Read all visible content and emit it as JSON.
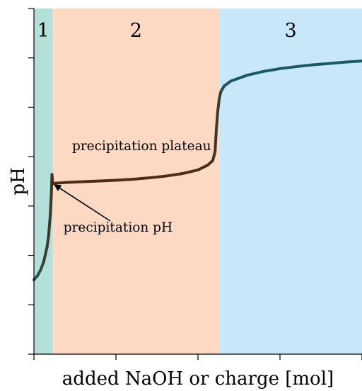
{
  "chart_data": {
    "type": "line",
    "title": "",
    "xlabel": "added NaOH or charge [mol]",
    "ylabel": "pH",
    "xlim": [
      0,
      1
    ],
    "ylim": [
      0,
      1
    ],
    "grid": false,
    "regions": [
      {
        "label": "1",
        "x_start": 0.0,
        "x_end": 0.057,
        "color": "#b3e0d9"
      },
      {
        "label": "2",
        "x_start": 0.057,
        "x_end": 0.565,
        "color": "#fdd9c3"
      },
      {
        "label": "3",
        "x_start": 0.565,
        "x_end": 1.0,
        "color": "#c8e8fa"
      }
    ],
    "series": [
      {
        "x": [
          0,
          0.01,
          0.02,
          0.03,
          0.04,
          0.045,
          0.05,
          0.053,
          0.055,
          0.057,
          0.06,
          0.1,
          0.15,
          0.2,
          0.25,
          0.3,
          0.35,
          0.4,
          0.45,
          0.5,
          0.53,
          0.545,
          0.552,
          0.556,
          0.56,
          0.565,
          0.57,
          0.58,
          0.6,
          0.65,
          0.7,
          0.75,
          0.8,
          0.85,
          0.9,
          0.95,
          1.0
        ],
        "y": [
          0.215,
          0.226,
          0.243,
          0.268,
          0.31,
          0.345,
          0.405,
          0.46,
          0.52,
          0.495,
          0.494,
          0.497,
          0.499,
          0.501,
          0.503,
          0.506,
          0.51,
          0.515,
          0.522,
          0.533,
          0.547,
          0.56,
          0.585,
          0.65,
          0.7,
          0.74,
          0.76,
          0.776,
          0.79,
          0.807,
          0.818,
          0.826,
          0.832,
          0.837,
          0.841,
          0.845,
          0.848
        ],
        "color_start": "#1c5a62",
        "color_mid": "#4a2e18"
      }
    ],
    "annotations": [
      {
        "text": "precipitation plateau",
        "x": 0.54,
        "y": 0.59
      },
      {
        "text": "precipitation pH",
        "x": 0.09,
        "y": 0.355,
        "arrow_to_x": 0.058,
        "arrow_to_y": 0.493
      }
    ],
    "x_tick_count": 4,
    "y_tick_count": 7
  }
}
